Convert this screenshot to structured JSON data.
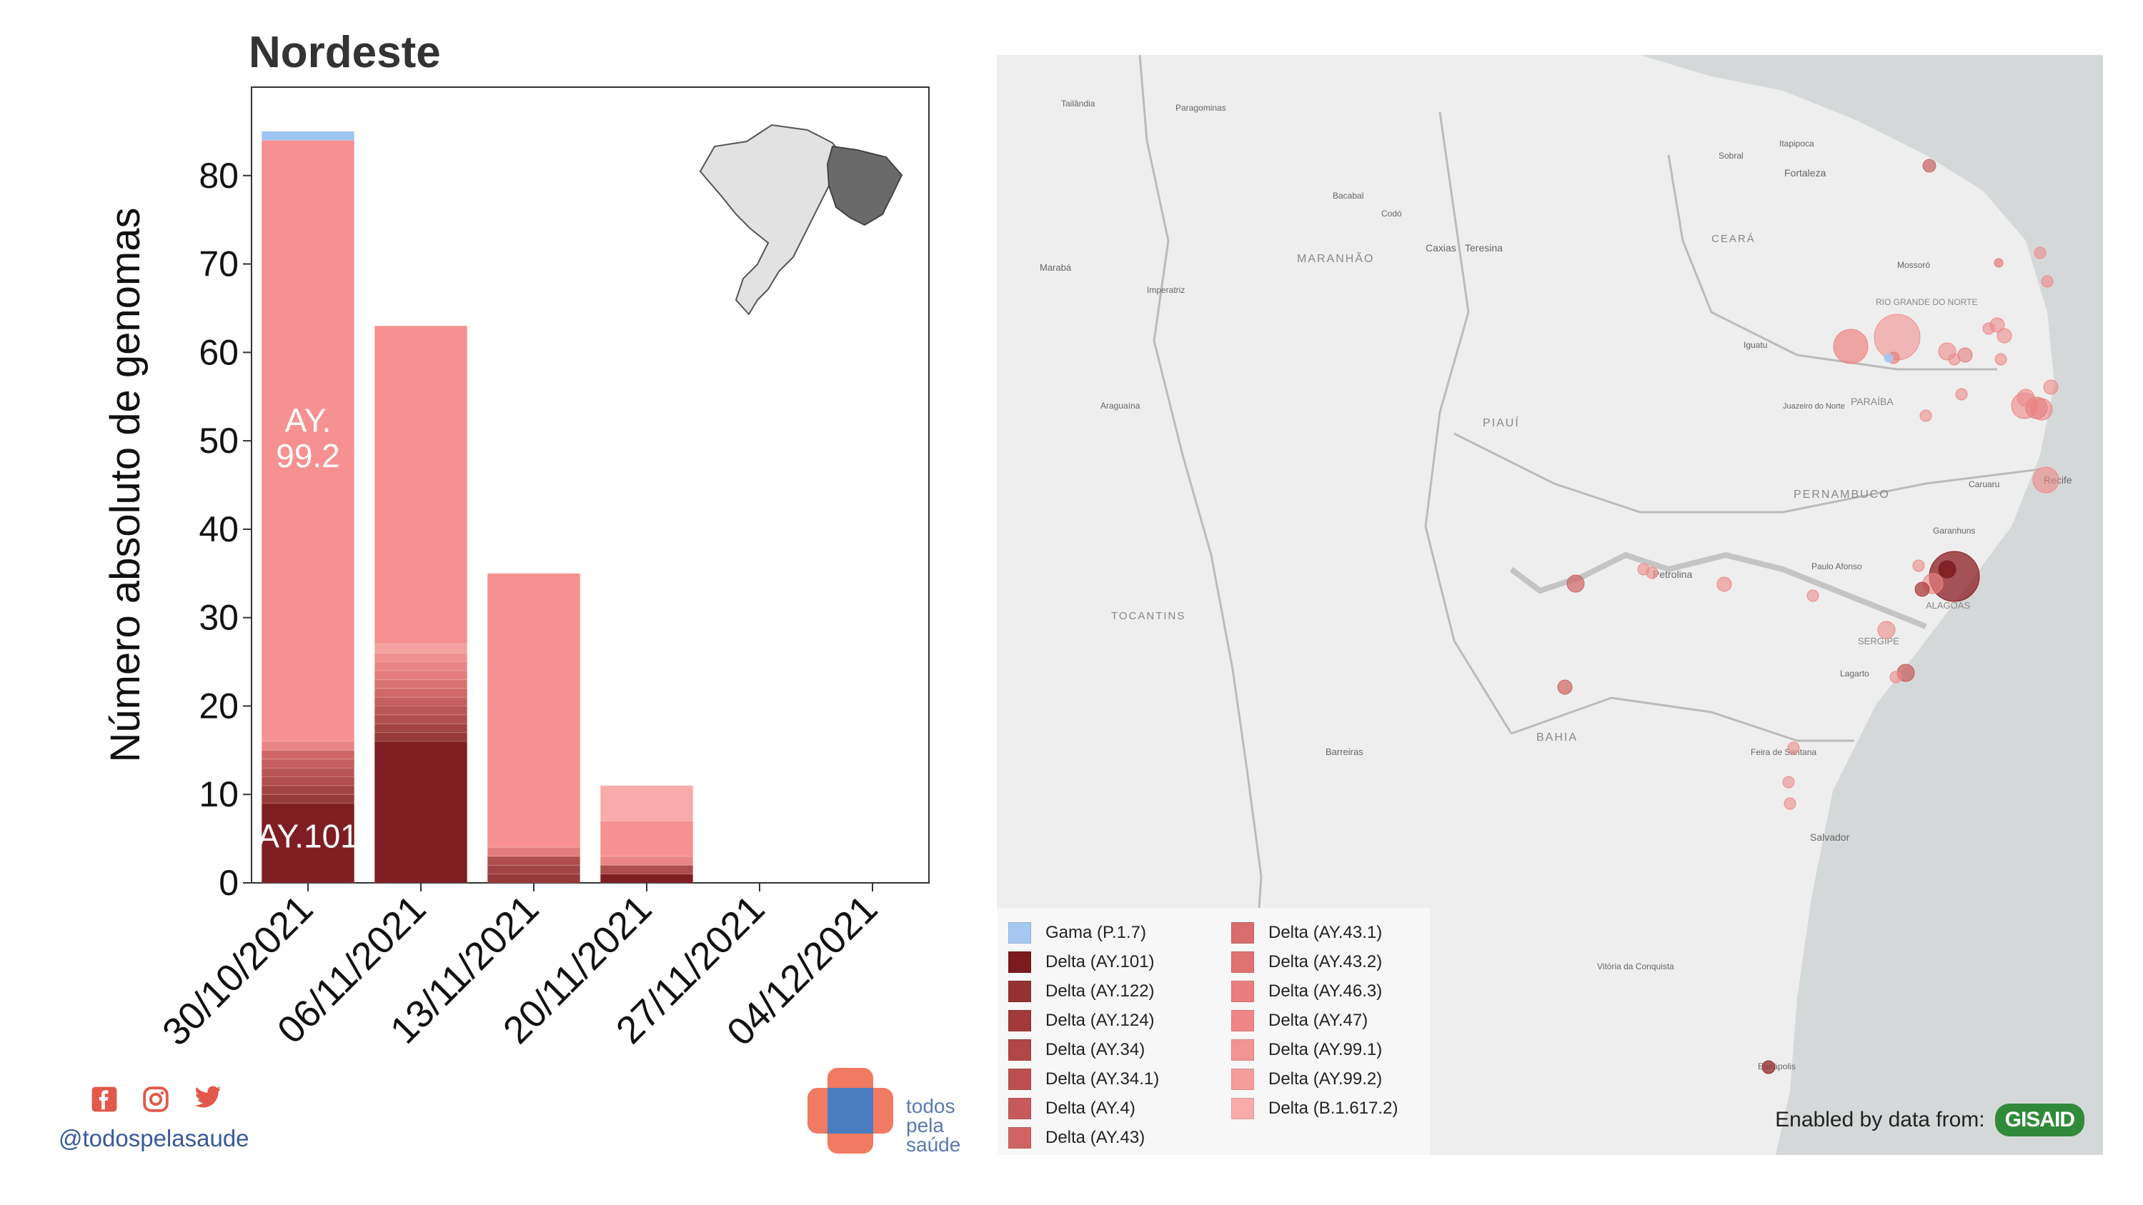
{
  "page": {
    "title": "Nordeste"
  },
  "chart_data": {
    "type": "bar",
    "stacked": true,
    "title": "Nordeste",
    "ylabel": "Número absoluto de genomas",
    "xlabel": "",
    "ylim": [
      0,
      90
    ],
    "yticks": [
      0,
      10,
      20,
      30,
      40,
      50,
      60,
      70,
      80
    ],
    "categories": [
      "30/10/2021",
      "06/11/2021",
      "13/11/2021",
      "20/11/2021",
      "27/11/2021",
      "04/12/2021"
    ],
    "series": [
      {
        "name": "Delta (AY.101)",
        "color": "#7f1e22",
        "values": [
          9,
          16,
          0,
          1,
          0,
          0
        ]
      },
      {
        "name": "Delta (AY.122)",
        "color": "#963a3a",
        "values": [
          1,
          1,
          1,
          0,
          0,
          0
        ]
      },
      {
        "name": "Delta (AY.124)",
        "color": "#a34444",
        "values": [
          1,
          1,
          1,
          0,
          0,
          0
        ]
      },
      {
        "name": "Delta (AY.34)",
        "color": "#b04d4d",
        "values": [
          1,
          1,
          1,
          1,
          0,
          0
        ]
      },
      {
        "name": "Delta (AY.34.1)",
        "color": "#bb5656",
        "values": [
          1,
          1,
          0,
          0,
          0,
          0
        ]
      },
      {
        "name": "Delta (AY.4)",
        "color": "#c65f5f",
        "values": [
          1,
          1,
          0,
          0,
          0,
          0
        ]
      },
      {
        "name": "Delta (AY.43)",
        "color": "#d06868",
        "values": [
          1,
          1,
          0,
          0,
          0,
          0
        ]
      },
      {
        "name": "Delta (AY.43.1)",
        "color": "#d97272",
        "values": [
          0,
          1,
          0,
          0,
          0,
          0
        ]
      },
      {
        "name": "Delta (AY.43.2)",
        "color": "#e37c7c",
        "values": [
          0,
          1,
          1,
          0,
          0,
          0
        ]
      },
      {
        "name": "Delta (AY.46.3)",
        "color": "#ea8585",
        "values": [
          1,
          1,
          0,
          1,
          0,
          0
        ]
      },
      {
        "name": "Delta (AY.47)",
        "color": "#f09090",
        "values": [
          0,
          1,
          0,
          0,
          0,
          0
        ]
      },
      {
        "name": "Delta (AY.99.1)",
        "color": "#f4a0a0",
        "values": [
          0,
          1,
          0,
          0,
          0,
          0
        ]
      },
      {
        "name": "Delta (AY.99.2)",
        "color": "#f79191",
        "values": [
          68,
          36,
          31,
          4,
          0,
          0
        ]
      },
      {
        "name": "Delta (B.1.617.2)",
        "color": "#f9aaaa",
        "values": [
          0,
          0,
          0,
          4,
          0,
          0
        ]
      },
      {
        "name": "Gama (P.1.7)",
        "color": "#9fc5f2",
        "values": [
          1,
          0,
          0,
          0,
          0,
          0
        ]
      }
    ],
    "annotations": [
      {
        "text": "AY.",
        "category": "30/10/2021",
        "y": 51
      },
      {
        "text": "99.2",
        "category": "30/10/2021",
        "y": 47
      },
      {
        "text": "AY.101",
        "category": "30/10/2021",
        "y": 4
      }
    ]
  },
  "map": {
    "place_labels": {
      "Fortaleza": "Fortaleza",
      "Ceara": "CEARÁ",
      "Maranhao": "MARANHÃO",
      "Piaui": "PIAUÍ",
      "Rio_Grande_do_Norte": "RIO GRANDE DO NORTE",
      "Paraiba": "PARAÍBA",
      "Pernambuco": "PERNAMBUCO",
      "Alagoas": "ALAGOAS",
      "Sergipe": "SERGIPE",
      "Bahia": "BAHIA",
      "Tocantins": "TOCANTINS",
      "Teresina": "Teresina",
      "Caxias": "Caxias",
      "Petrolina": "Petrolina",
      "Salvador": "Salvador",
      "Recife": "Recife",
      "Barreiras": "Barreiras",
      "Maraba": "Marabá",
      "Araguaina": "Araguaína",
      "Imperatriz": "Imperatriz",
      "Juazeiro_do_Norte": "Juazeiro do Norte",
      "Feira_de_Santana": "Feira de Santana",
      "Vitoria_da_Conquista": "Vitória da Conquista",
      "Caruaru": "Caruaru",
      "Mossoro": "Mossoró",
      "Sobral": "Sobral",
      "Codo": "Codó",
      "Bacabal": "Bacabal",
      "Paragominas": "Paragominas",
      "Tailandia": "Tailândia",
      "Paulo_Afonso": "Paulo Afonso",
      "Garanhuns": "Garanhuns",
      "Lagarto": "Lagarto",
      "Iguatu": "Iguatu",
      "Eunapolis": "Eunápolis",
      "Itapipoca": "Itapipoca"
    },
    "legend": [
      {
        "label": "Gama (P.1.7)",
        "color": "#a6c8f0"
      },
      {
        "label": "Delta (AY.101)",
        "color": "#7b1a1f"
      },
      {
        "label": "Delta (AY.122)",
        "color": "#953232"
      },
      {
        "label": "Delta (AY.124)",
        "color": "#a23a3a"
      },
      {
        "label": "Delta (AY.34)",
        "color": "#b04646"
      },
      {
        "label": "Delta (AY.34.1)",
        "color": "#bc5050"
      },
      {
        "label": "Delta (AY.4)",
        "color": "#c65a5a"
      },
      {
        "label": "Delta (AY.43)",
        "color": "#d06464"
      },
      {
        "label": "Delta (AY.43.1)",
        "color": "#d96c6c"
      },
      {
        "label": "Delta (AY.43.2)",
        "color": "#e07272"
      },
      {
        "label": "Delta (AY.46.3)",
        "color": "#ea7d7d"
      },
      {
        "label": "Delta (AY.47)",
        "color": "#ef8686"
      },
      {
        "label": "Delta (AY.99.1)",
        "color": "#f39494"
      },
      {
        "label": "Delta (AY.99.2)",
        "color": "#f59c9c"
      },
      {
        "label": "Delta (B.1.617.2)",
        "color": "#f9abab"
      }
    ],
    "credit": "Enabled by data from:",
    "credit_brand": "GISAID"
  },
  "footer": {
    "social_icons": [
      "facebook-icon",
      "instagram-icon",
      "twitter-icon"
    ],
    "handle": "@todospelasaude",
    "brand_lines": [
      "todos",
      "pela",
      "saúde"
    ]
  },
  "colors": {
    "title": "#333333",
    "handle": "#3a5a9a",
    "brand_text": "#5a7bb0",
    "logo_orange": "#f07a62",
    "logo_blue": "#4a7cc0"
  }
}
